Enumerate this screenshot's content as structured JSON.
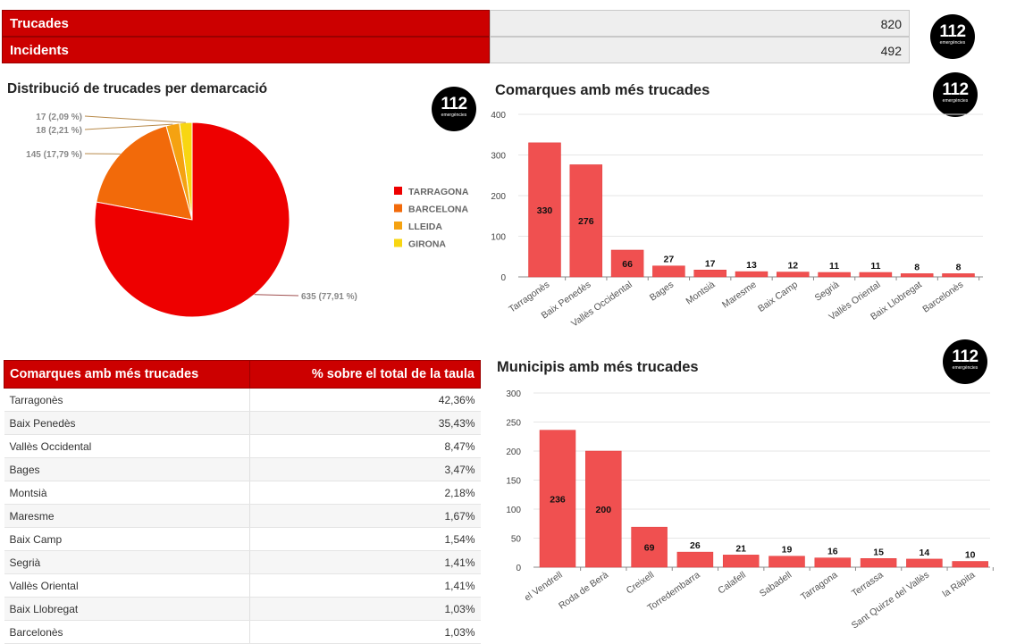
{
  "summary": [
    {
      "label": "Trucades",
      "value": "820"
    },
    {
      "label": "Incidents",
      "value": "492"
    }
  ],
  "logo": {
    "number": "112",
    "sub": "emergències"
  },
  "pie": {
    "title": "Distribució de trucades per demarcació"
  },
  "bar1": {
    "title": "Comarques amb més trucades"
  },
  "bar2": {
    "title": "Municipis amb més trucades"
  },
  "table": {
    "headers": [
      "Comarques amb més trucades",
      "% sobre el total de la taula"
    ],
    "rows": [
      [
        "Tarragonès",
        "42,36%"
      ],
      [
        "Baix Penedès",
        "35,43%"
      ],
      [
        "Vallès Occidental",
        "8,47%"
      ],
      [
        "Bages",
        "3,47%"
      ],
      [
        "Montsià",
        "2,18%"
      ],
      [
        "Maresme",
        "1,67%"
      ],
      [
        "Baix Camp",
        "1,54%"
      ],
      [
        "Segrià",
        "1,41%"
      ],
      [
        "Vallès Oriental",
        "1,41%"
      ],
      [
        "Baix Llobregat",
        "1,03%"
      ],
      [
        "Barcelonès",
        "1,03%"
      ]
    ]
  },
  "chart_data": [
    {
      "type": "pie",
      "title": "Distribució de trucades per demarcació",
      "slices": [
        {
          "name": "TARRAGONA",
          "value": 635,
          "label": "635 (77,91 %)",
          "color": "#ee0000"
        },
        {
          "name": "BARCELONA",
          "value": 145,
          "label": "145 (17,79 %)",
          "color": "#f26a0a"
        },
        {
          "name": "LLEIDA",
          "value": 18,
          "label": "18 (2,21 %)",
          "color": "#f5a211"
        },
        {
          "name": "GIRONA",
          "value": 17,
          "label": "17 (2,09 %)",
          "color": "#f8d612"
        }
      ],
      "legend": "right"
    },
    {
      "type": "bar",
      "title": "Comarques amb més trucades",
      "categories": [
        "Tarragonès",
        "Baix Penedès",
        "Vallès Occidental",
        "Bages",
        "Montsià",
        "Maresme",
        "Baix Camp",
        "Segrià",
        "Vallès Oriental",
        "Baix Llobregat",
        "Barcelonès"
      ],
      "values": [
        330,
        276,
        66,
        27,
        17,
        13,
        12,
        11,
        11,
        8,
        8
      ],
      "yticks": [
        0,
        100,
        200,
        300,
        400
      ],
      "ylim": [
        0,
        400
      ],
      "color": "#f05050",
      "grid": true
    },
    {
      "type": "bar",
      "title": "Municipis amb més trucades",
      "categories": [
        "el Vendrell",
        "Roda de Berà",
        "Creixell",
        "Torredembarra",
        "Calafell",
        "Sabadell",
        "Tarragona",
        "Terrassa",
        "Sant Quirze del Vallès",
        "la Ràpita"
      ],
      "values": [
        236,
        200,
        69,
        26,
        21,
        19,
        16,
        15,
        14,
        10
      ],
      "yticks": [
        0,
        50,
        100,
        150,
        200,
        250,
        300
      ],
      "ylim": [
        0,
        300
      ],
      "color": "#f05050",
      "grid": true
    }
  ]
}
